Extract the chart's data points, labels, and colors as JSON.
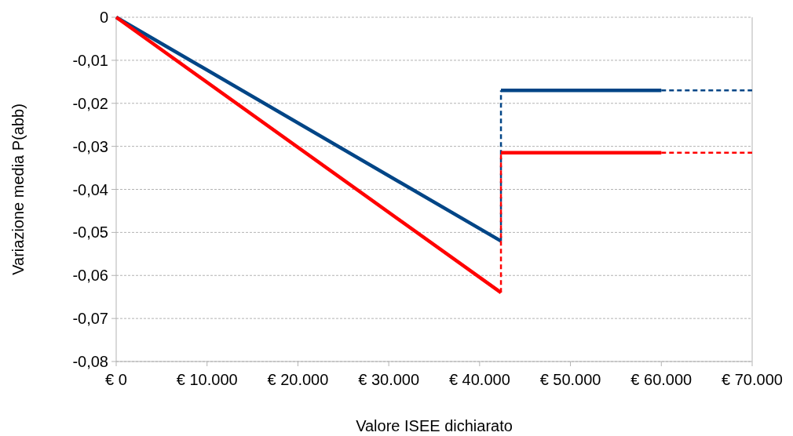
{
  "chart_data": {
    "type": "line",
    "xlabel": "Valore ISEE dichiarato",
    "ylabel": "Variazione media P(abb)",
    "xlim": [
      0,
      70000
    ],
    "ylim": [
      -0.08,
      0
    ],
    "xticks": [
      {
        "value": 0,
        "label": "€ 0"
      },
      {
        "value": 10000,
        "label": "€ 10.000"
      },
      {
        "value": 20000,
        "label": "€ 20.000"
      },
      {
        "value": 30000,
        "label": "€ 30.000"
      },
      {
        "value": 40000,
        "label": "€ 40.000"
      },
      {
        "value": 50000,
        "label": "€ 50.000"
      },
      {
        "value": 60000,
        "label": "€ 60.000"
      },
      {
        "value": 70000,
        "label": "€ 70.000"
      }
    ],
    "yticks": [
      0,
      {
        "value": -0.01,
        "label": "-0,01"
      },
      {
        "value": -0.02,
        "label": "-0,02"
      },
      {
        "value": -0.03,
        "label": "-0,03"
      },
      {
        "value": -0.04,
        "label": "-0,04"
      },
      {
        "value": -0.05,
        "label": "-0,05"
      },
      {
        "value": -0.06,
        "label": "-0,06"
      },
      {
        "value": -0.07,
        "label": "-0,07"
      },
      {
        "value": -0.08,
        "label": "-0,08"
      }
    ],
    "grid": "y",
    "series": [
      {
        "color": "#004586",
        "line_style": "solid",
        "x": [
          0,
          42350
        ],
        "values": [
          0,
          -0.052
        ]
      },
      {
        "color": "#004586",
        "line_style": "dashed",
        "x": [
          42350,
          42350
        ],
        "values": [
          -0.052,
          -0.017
        ]
      },
      {
        "color": "#004586",
        "line_style": "solid",
        "x": [
          42350,
          60000
        ],
        "values": [
          -0.017,
          -0.017
        ]
      },
      {
        "color": "#004586",
        "line_style": "dashed",
        "x": [
          60000,
          70000
        ],
        "values": [
          -0.017,
          -0.017
        ]
      },
      {
        "color": "#ff0000",
        "line_style": "solid",
        "x": [
          0,
          42350
        ],
        "values": [
          0,
          -0.064
        ]
      },
      {
        "color": "#ff0000",
        "line_style": "dashed",
        "x": [
          42350,
          42350
        ],
        "values": [
          -0.064,
          -0.0315
        ]
      },
      {
        "color": "#ff0000",
        "line_style": "solid",
        "x": [
          42350,
          60000
        ],
        "values": [
          -0.0315,
          -0.0315
        ]
      },
      {
        "color": "#ff0000",
        "line_style": "dashed",
        "x": [
          60000,
          70000
        ],
        "values": [
          -0.0315,
          -0.0315
        ]
      }
    ]
  }
}
